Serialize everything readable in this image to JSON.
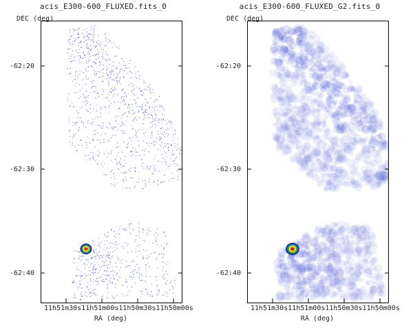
{
  "panels": [
    {
      "title": "acis_E300-600_FLUXED.fits_0",
      "ylabel": "DEC (deg)",
      "xlabel": "RA (deg)",
      "yticks": [
        "-62:20",
        "-62:30",
        "-62:40"
      ],
      "xticks": "11h51m30s11h51m00s11h50m30s11h50m00s",
      "style": "sparse"
    },
    {
      "title": "acis_E300-600_FLUXED_G2.fits_0",
      "ylabel": "DEC (deg)",
      "xlabel": "RA (deg)",
      "yticks": [
        "-62:20",
        "-62:30",
        "-62:40"
      ],
      "xticks": "11h51m30s11h51m00s11h50m30s11h50m00s",
      "style": "smoothed"
    }
  ],
  "colors": {
    "emission": "#5a66d8",
    "source_core": "#d21c1c",
    "source_ring1": "#f2e41a",
    "source_ring2": "#28b04a",
    "source_ring3": "#1a2ab8"
  }
}
